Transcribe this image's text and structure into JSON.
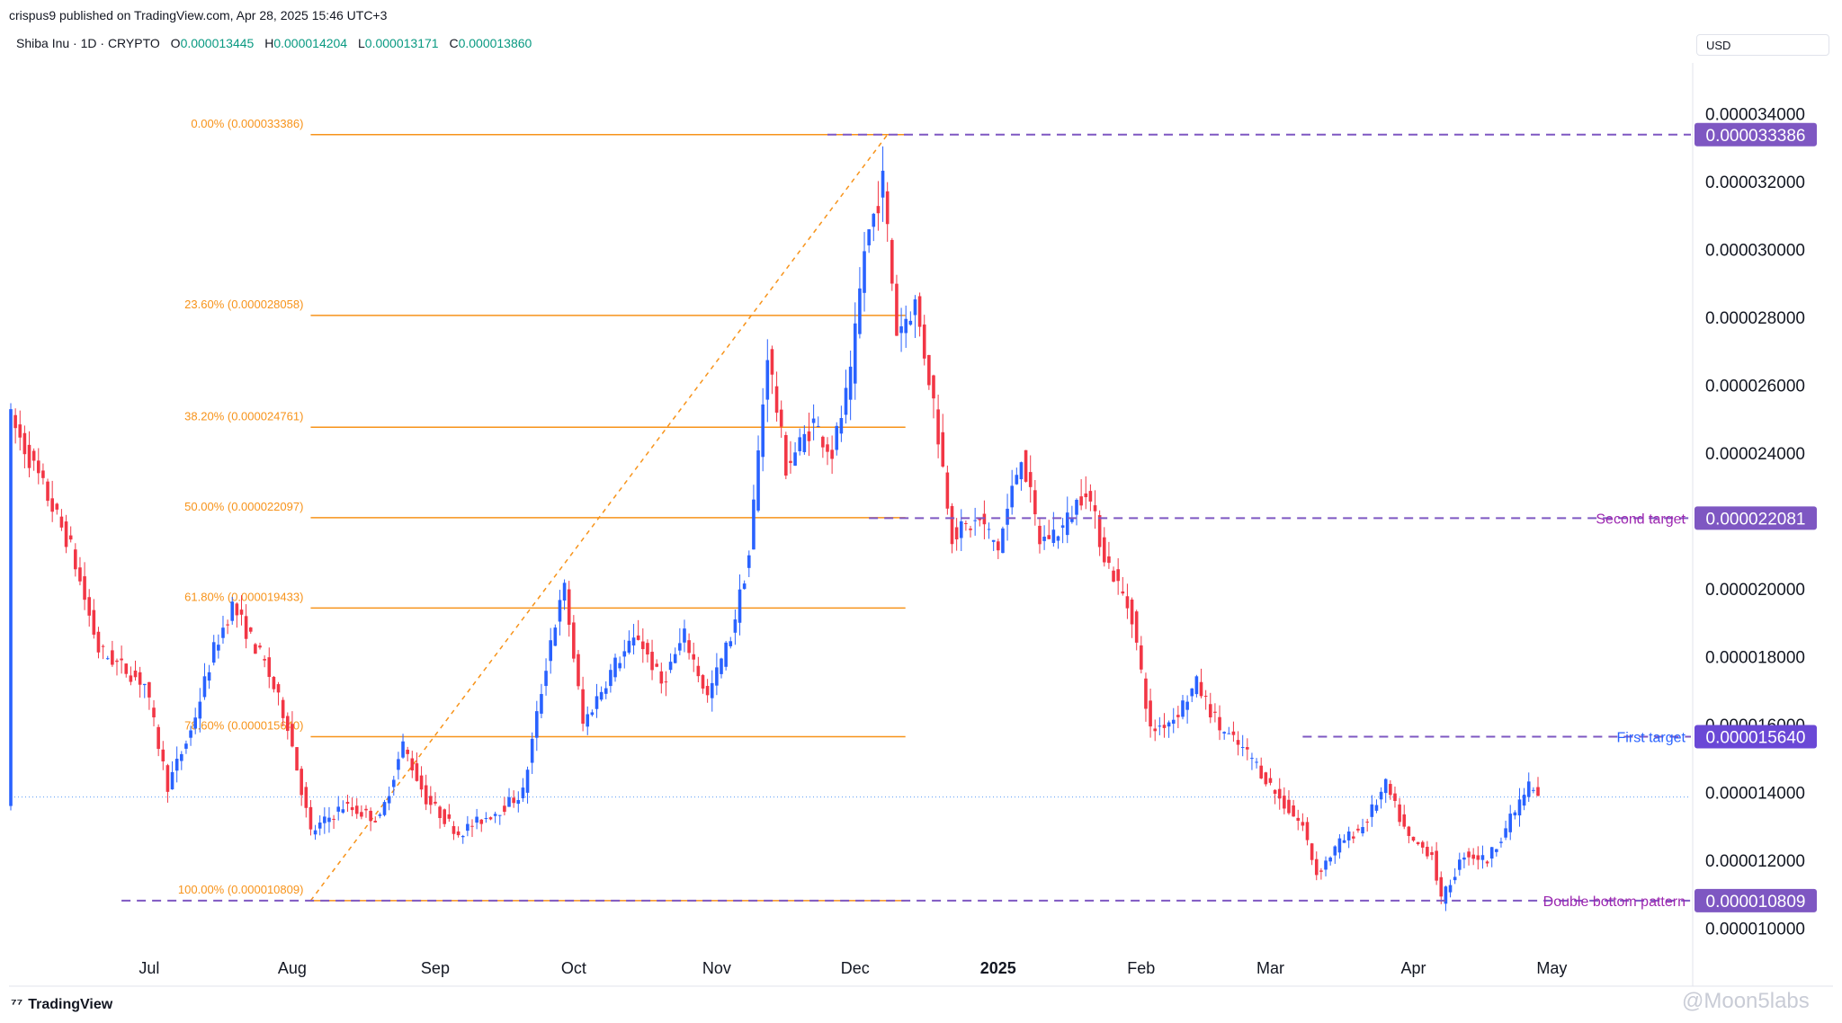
{
  "header": {
    "published": "crispus9 published on TradingView.com, Apr 28, 2025 15:46 UTC+3",
    "symbol": "Shiba Inu · 1D · CRYPTO",
    "ohlc": [
      {
        "k": "O",
        "v": "0.000013445"
      },
      {
        "k": "H",
        "v": "0.000014204"
      },
      {
        "k": "L",
        "v": "0.000013171"
      },
      {
        "k": "C",
        "v": "0.000013860"
      }
    ],
    "currency": "USD"
  },
  "footer": {
    "brand": "TradingView",
    "watermark": "@Moon5labs"
  },
  "colors": {
    "up": "#2962ff",
    "down": "#f23645",
    "fib": "#f7931a",
    "level": "#7e57c2",
    "level_label": "#9c27b0",
    "first_target": "#2962ff",
    "current": "#5b9cf6"
  },
  "chart_data": {
    "type": "candlestick",
    "ylim": [
      9.4e-06,
      3.55e-05
    ],
    "y_ticks": [
      "0.000034000",
      "0.000032000",
      "0.000030000",
      "0.000028000",
      "0.000026000",
      "0.000024000",
      "0.000022000",
      "0.000020000",
      "0.000018000",
      "0.000016000",
      "0.000014000",
      "0.000012000",
      "0.000010000"
    ],
    "y_tick_values": [
      3.4e-05,
      3.2e-05,
      3e-05,
      2.8e-05,
      2.6e-05,
      2.4e-05,
      2.2e-05,
      2e-05,
      1.8e-05,
      1.6e-05,
      1.4e-05,
      1.2e-05,
      1e-05
    ],
    "x_labels": [
      {
        "label": "Jul",
        "date": "2024-07-01",
        "bold": false
      },
      {
        "label": "Aug",
        "date": "2024-08-01",
        "bold": false
      },
      {
        "label": "Sep",
        "date": "2024-09-01",
        "bold": false
      },
      {
        "label": "Oct",
        "date": "2024-10-01",
        "bold": false
      },
      {
        "label": "Nov",
        "date": "2024-11-01",
        "bold": false
      },
      {
        "label": "Dec",
        "date": "2024-12-01",
        "bold": false
      },
      {
        "label": "2025",
        "date": "2025-01-01",
        "bold": true
      },
      {
        "label": "Feb",
        "date": "2025-02-01",
        "bold": false
      },
      {
        "label": "Mar",
        "date": "2025-03-01",
        "bold": false
      },
      {
        "label": "Apr",
        "date": "2025-04-01",
        "bold": false
      },
      {
        "label": "May",
        "date": "2025-05-01",
        "bold": false
      }
    ],
    "date_range": [
      "2024-06-01",
      "2025-04-28"
    ],
    "price_path": [
      [
        "2024-06-01",
        2.5e-05
      ],
      [
        "2024-06-08",
        2.3e-05
      ],
      [
        "2024-06-14",
        2.12e-05
      ],
      [
        "2024-06-20",
        1.82e-05
      ],
      [
        "2024-06-30",
        1.72e-05
      ],
      [
        "2024-07-05",
        1.42e-05
      ],
      [
        "2024-07-10",
        1.58e-05
      ],
      [
        "2024-07-15",
        1.82e-05
      ],
      [
        "2024-07-19",
        1.95e-05
      ],
      [
        "2024-07-26",
        1.78e-05
      ],
      [
        "2024-07-31",
        1.6e-05
      ],
      [
        "2024-08-05",
        1.28e-05
      ],
      [
        "2024-08-12",
        1.36e-05
      ],
      [
        "2024-08-20",
        1.32e-05
      ],
      [
        "2024-08-25",
        1.54e-05
      ],
      [
        "2024-08-30",
        1.38e-05
      ],
      [
        "2024-09-06",
        1.28e-05
      ],
      [
        "2024-09-15",
        1.35e-05
      ],
      [
        "2024-09-20",
        1.4e-05
      ],
      [
        "2024-09-26",
        1.85e-05
      ],
      [
        "2024-09-29",
        2e-05
      ],
      [
        "2024-10-03",
        1.6e-05
      ],
      [
        "2024-10-10",
        1.78e-05
      ],
      [
        "2024-10-15",
        1.86e-05
      ],
      [
        "2024-10-20",
        1.72e-05
      ],
      [
        "2024-10-25",
        1.86e-05
      ],
      [
        "2024-10-30",
        1.68e-05
      ],
      [
        "2024-11-04",
        1.86e-05
      ],
      [
        "2024-11-08",
        2.1e-05
      ],
      [
        "2024-11-12",
        2.7e-05
      ],
      [
        "2024-11-16",
        2.36e-05
      ],
      [
        "2024-11-22",
        2.49e-05
      ],
      [
        "2024-11-26",
        2.4e-05
      ],
      [
        "2024-11-30",
        2.62e-05
      ],
      [
        "2024-12-03",
        3e-05
      ],
      [
        "2024-12-07",
        3.2e-05
      ],
      [
        "2024-12-10",
        2.76e-05
      ],
      [
        "2024-12-14",
        2.84e-05
      ],
      [
        "2024-12-18",
        2.55e-05
      ],
      [
        "2024-12-22",
        2.16e-05
      ],
      [
        "2024-12-28",
        2.2e-05
      ],
      [
        "2025-01-01",
        2.12e-05
      ],
      [
        "2025-01-06",
        2.4e-05
      ],
      [
        "2025-01-10",
        2.14e-05
      ],
      [
        "2025-01-15",
        2.18e-05
      ],
      [
        "2025-01-20",
        2.3e-05
      ],
      [
        "2025-01-24",
        2.1e-05
      ],
      [
        "2025-01-30",
        1.92e-05
      ],
      [
        "2025-02-03",
        1.58e-05
      ],
      [
        "2025-02-08",
        1.62e-05
      ],
      [
        "2025-02-13",
        1.72e-05
      ],
      [
        "2025-02-18",
        1.59e-05
      ],
      [
        "2025-02-25",
        1.5e-05
      ],
      [
        "2025-03-03",
        1.38e-05
      ],
      [
        "2025-03-08",
        1.3e-05
      ],
      [
        "2025-03-11",
        1.16e-05
      ],
      [
        "2025-03-16",
        1.25e-05
      ],
      [
        "2025-03-21",
        1.3e-05
      ],
      [
        "2025-03-26",
        1.42e-05
      ],
      [
        "2025-03-31",
        1.26e-05
      ],
      [
        "2025-04-05",
        1.22e-05
      ],
      [
        "2025-04-07",
        1.08e-05
      ],
      [
        "2025-04-12",
        1.22e-05
      ],
      [
        "2025-04-17",
        1.2e-05
      ],
      [
        "2025-04-22",
        1.32e-05
      ],
      [
        "2025-04-26",
        1.42e-05
      ],
      [
        "2025-04-28",
        1.386e-05
      ]
    ],
    "fib": {
      "x_start": "2024-08-05",
      "x_end": "2024-12-08",
      "levels": [
        {
          "label": "0.00% (0.000033386)",
          "value": 3.3386e-05
        },
        {
          "label": "23.60% (0.000028058)",
          "value": 2.8058e-05
        },
        {
          "label": "38.20% (0.000024761)",
          "value": 2.4761e-05
        },
        {
          "label": "50.00% (0.000022097)",
          "value": 2.2097e-05
        },
        {
          "label": "61.80% (0.000019433)",
          "value": 1.9433e-05
        },
        {
          "label": "78.60% (0.000015640)",
          "value": 1.564e-05
        },
        {
          "label": "100.00% (0.000010809)",
          "value": 1.0809e-05
        }
      ],
      "trend_from": [
        "2024-08-05",
        1.0809e-05
      ],
      "trend_to": [
        "2024-12-08",
        3.3386e-05
      ]
    },
    "levels": [
      {
        "label": "",
        "value": 3.3386e-05,
        "tag": "0.000033386",
        "x_from": "2024-11-25",
        "style": "dashed",
        "color": "#7e57c2"
      },
      {
        "label": "Second target",
        "value": 2.2081e-05,
        "tag": "0.000022081",
        "x_from": "2024-12-04",
        "style": "dashed",
        "color": "#7e57c2"
      },
      {
        "label": "First target",
        "value": 1.564e-05,
        "tag": "0.000015640",
        "x_from": "2025-03-08",
        "style": "dashed",
        "color": "#7e57c2"
      },
      {
        "label": "Double bottom pattern",
        "value": 1.0809e-05,
        "tag": "0.000010809",
        "x_from": "2024-06-25",
        "style": "dashed",
        "color": "#7e57c2"
      }
    ],
    "current_price": 1.386e-05,
    "grid": false,
    "legend": "none"
  }
}
